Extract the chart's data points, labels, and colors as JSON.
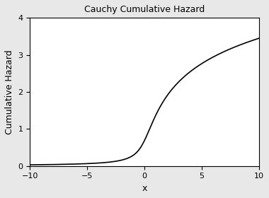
{
  "title": "Cauchy Cumulative Hazard",
  "xlabel": "x",
  "ylabel": "Cumulative Hazard",
  "xlim": [
    -10,
    10
  ],
  "ylim": [
    0,
    4
  ],
  "x_ticks": [
    -10,
    -5,
    0,
    5,
    10
  ],
  "y_ticks": [
    0,
    1,
    2,
    3,
    4
  ],
  "line_color": "black",
  "line_width": 1.2,
  "background_color": "white",
  "title_fontsize": 9,
  "label_fontsize": 9,
  "tick_fontsize": 8,
  "fig_facecolor": "#e8e8e8"
}
